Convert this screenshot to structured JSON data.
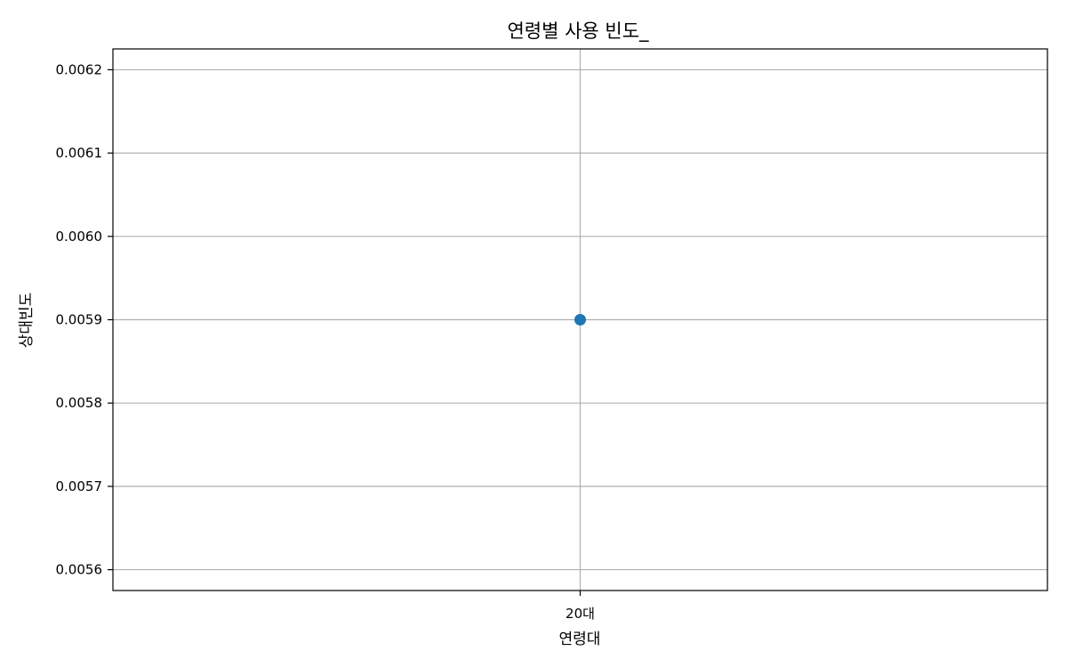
{
  "chart_data": {
    "type": "line",
    "title": "연령별 사용 빈도_",
    "xlabel": "연령대",
    "ylabel": "상대빈도",
    "categories": [
      "20대"
    ],
    "series": [
      {
        "values": [
          0.0059
        ],
        "color": "#1f77b4",
        "marker": "circle"
      }
    ],
    "ylim": [
      0.005575,
      0.006225
    ],
    "yticks": [
      0.0056,
      0.0057,
      0.0058,
      0.0059,
      0.006,
      0.0061,
      0.0062
    ],
    "ytick_labels": [
      "0.0056",
      "0.0057",
      "0.0058",
      "0.0059",
      "0.0060",
      "0.0061",
      "0.0062"
    ],
    "grid": true,
    "colors": {
      "grid": "#b0b0b0",
      "axes": "#000000"
    }
  }
}
